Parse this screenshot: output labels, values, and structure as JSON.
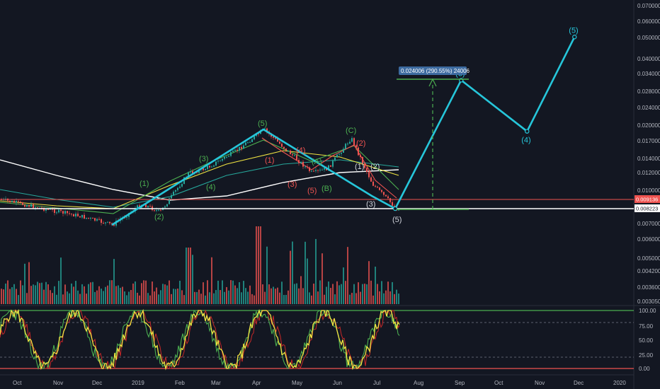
{
  "chart_data": {
    "type": "line",
    "price_axis": {
      "scale": "log",
      "ticks": [
        "0.070000",
        "0.060000",
        "0.050000",
        "0.040000",
        "0.034000",
        "0.028000",
        "0.024000",
        "0.020000",
        "0.017000",
        "0.014000",
        "0.012000",
        "0.010000",
        "0.007000",
        "0.006000",
        "0.005000",
        "0.004200",
        "0.003600",
        "0.003050"
      ]
    },
    "oscillator_axis": {
      "ticks": [
        "100.00",
        "75.00",
        "50.00",
        "25.00",
        "0.00"
      ],
      "levels": [
        100,
        80,
        20,
        0
      ]
    },
    "x_labels": [
      "Oct",
      "Nov",
      "Dec",
      "2019",
      "Feb",
      "Mar",
      "Apr",
      "May",
      "Jun",
      "Jul",
      "Aug",
      "Sep",
      "Oct",
      "Nov",
      "Dec",
      "2020"
    ],
    "price_badges": [
      {
        "value": "0.009136",
        "color": "#ef5350"
      },
      {
        "value": "0.008223",
        "color": "#ffffff"
      }
    ],
    "measure_label": "0.024006 (290.55%) 24006",
    "projection": {
      "points": [
        {
          "date": "2019-07-17",
          "price": 0.00822,
          "label": ""
        },
        {
          "date": "2019-09-05",
          "price": 0.0322,
          "label": "(3)"
        },
        {
          "date": "2019-10-25",
          "price": 0.0187,
          "label": "(4)"
        },
        {
          "date": "2019-11-30",
          "price": 0.051,
          "label": "(5)"
        }
      ]
    },
    "wave_labels": [
      {
        "text": "(1)",
        "color": "#4caf50"
      },
      {
        "text": "(2)",
        "color": "#4caf50"
      },
      {
        "text": "(3)",
        "color": "#4caf50"
      },
      {
        "text": "(4)",
        "color": "#4caf50"
      },
      {
        "text": "(5)",
        "color": "#4caf50"
      },
      {
        "text": "(1)",
        "color": "#ef5350"
      },
      {
        "text": "(3)",
        "color": "#ef5350"
      },
      {
        "text": "(4)",
        "color": "#ef5350"
      },
      {
        "text": "(5)",
        "color": "#ef5350"
      },
      {
        "text": "(A)",
        "color": "#4caf50"
      },
      {
        "text": "(B)",
        "color": "#4caf50"
      },
      {
        "text": "(C)",
        "color": "#4caf50"
      },
      {
        "text": "(2)",
        "color": "#ef5350"
      },
      {
        "text": "(1)",
        "color": "#d1d4dc"
      },
      {
        "text": "(2)",
        "color": "#d1d4dc"
      },
      {
        "text": "(3)",
        "color": "#d1d4dc"
      },
      {
        "text": "(5)",
        "color": "#d1d4dc"
      }
    ],
    "colors": {
      "background": "#131722",
      "projection": "#26c6da",
      "support": "#ffffff",
      "target_line": "#4caf50",
      "volume_up": "#26a69a",
      "volume_down": "#ef5350",
      "osc_k": "#f0e442",
      "osc_d": "#4caf50",
      "osc_r": "#c62828"
    }
  }
}
